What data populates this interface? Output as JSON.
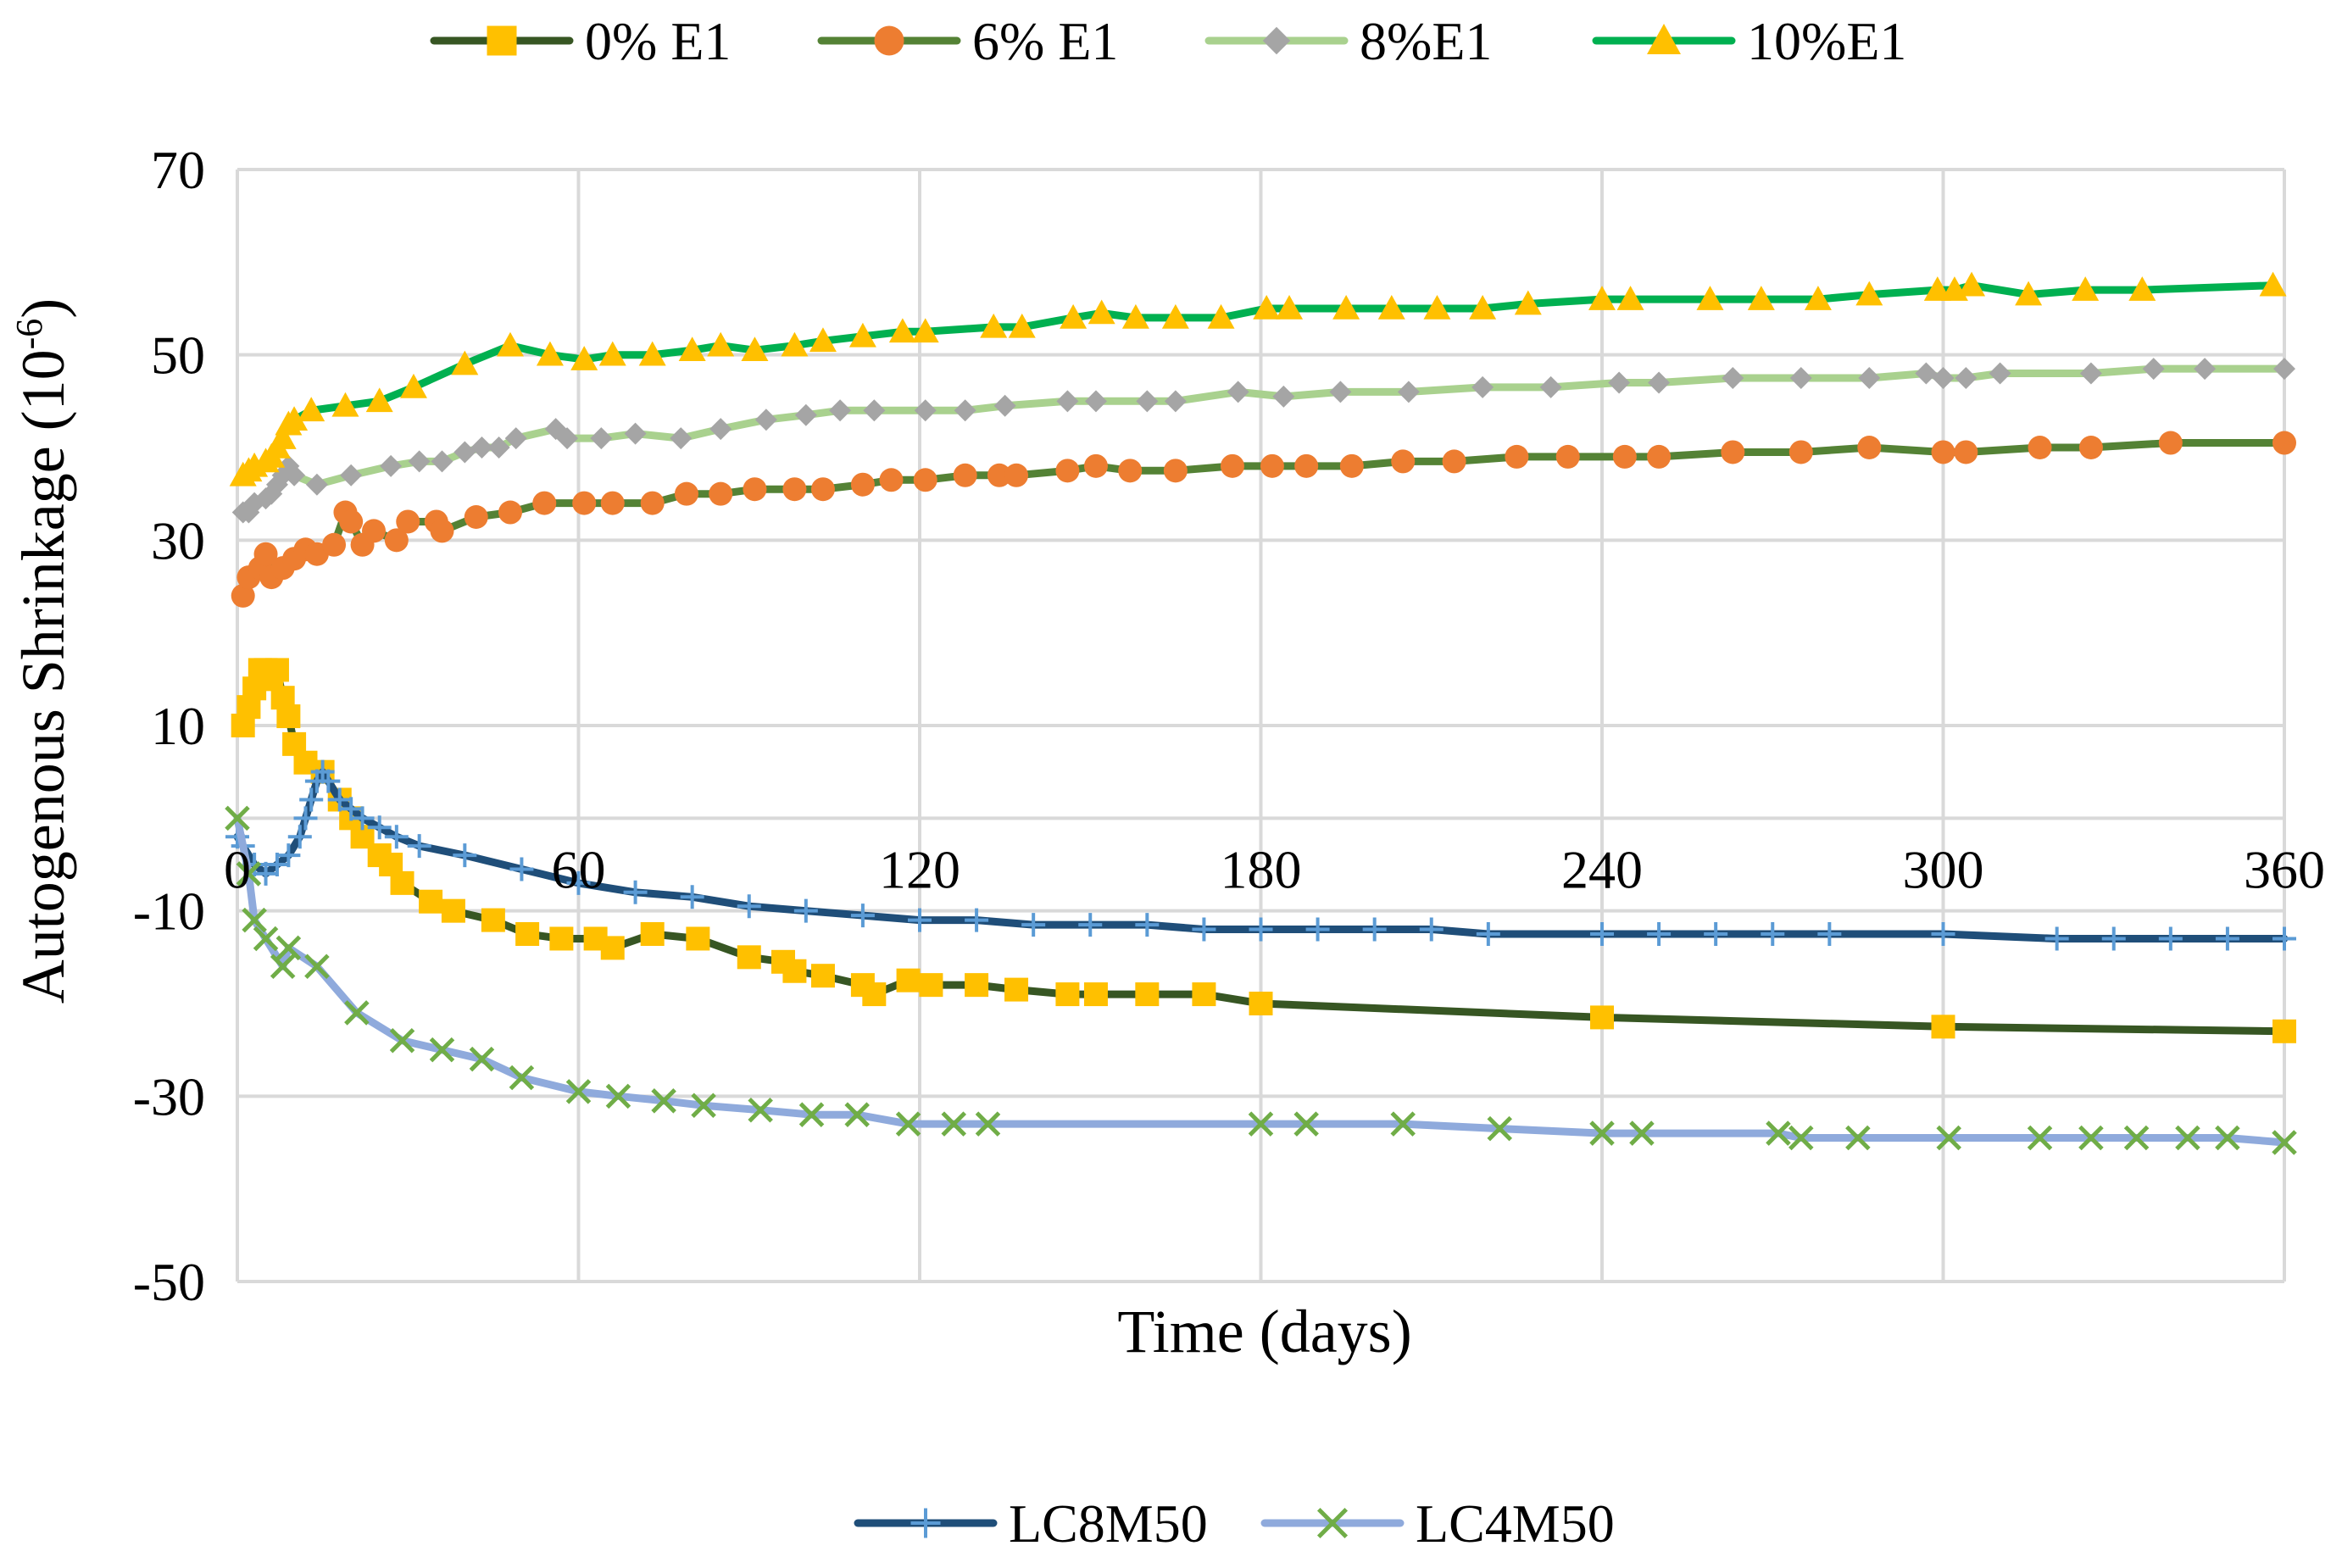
{
  "chart_data": {
    "type": "line",
    "title": "",
    "xlabel": "Time (days)",
    "ylabel_main": "Autogenous Shrinkage (10",
    "ylabel_sup": "-6",
    "ylabel_close": ")",
    "xlim": [
      0,
      360
    ],
    "ylim": [
      -50,
      70
    ],
    "xticks": [
      0,
      60,
      120,
      180,
      240,
      300,
      360
    ],
    "yticks": [
      -50,
      -30,
      -10,
      10,
      30,
      50,
      70
    ],
    "grid": true,
    "legend_top": [
      "0% E1",
      "6% E1",
      "8%E1",
      "10%E1"
    ],
    "legend_bottom": [
      "LC8M50",
      "LC4M50"
    ],
    "series": [
      {
        "name": "0% E1",
        "line_color": "#375623",
        "marker_color": "#FFC000",
        "marker": "square",
        "points": [
          [
            1,
            10
          ],
          [
            2,
            12
          ],
          [
            3,
            14
          ],
          [
            4,
            16
          ],
          [
            5,
            16
          ],
          [
            6,
            15
          ],
          [
            7,
            16
          ],
          [
            8,
            13
          ],
          [
            9,
            11
          ],
          [
            10,
            8
          ],
          [
            12,
            6
          ],
          [
            15,
            5
          ],
          [
            18,
            2
          ],
          [
            20,
            0
          ],
          [
            22,
            -2
          ],
          [
            25,
            -4
          ],
          [
            27,
            -5
          ],
          [
            29,
            -7
          ],
          [
            34,
            -9
          ],
          [
            38,
            -10
          ],
          [
            45,
            -11
          ],
          [
            51,
            -12.5
          ],
          [
            57,
            -13
          ],
          [
            63,
            -13
          ],
          [
            66,
            -14
          ],
          [
            73,
            -12.5
          ],
          [
            81,
            -13
          ],
          [
            90,
            -15
          ],
          [
            96,
            -15.5
          ],
          [
            98,
            -16.5
          ],
          [
            103,
            -17
          ],
          [
            110,
            -18
          ],
          [
            112,
            -19
          ],
          [
            118,
            -17.5
          ],
          [
            122,
            -18
          ],
          [
            130,
            -18
          ],
          [
            137,
            -18.5
          ],
          [
            146,
            -19
          ],
          [
            151,
            -19
          ],
          [
            160,
            -19
          ],
          [
            170,
            -19
          ],
          [
            180,
            -20
          ],
          [
            240,
            -21.5
          ],
          [
            300,
            -22.5
          ],
          [
            360,
            -23
          ]
        ]
      },
      {
        "name": "6% E1",
        "line_color": "#548235",
        "marker_color": "#ED7D31",
        "marker": "circle",
        "points": [
          [
            1,
            24
          ],
          [
            2,
            26
          ],
          [
            4,
            27
          ],
          [
            5,
            28.5
          ],
          [
            6,
            26
          ],
          [
            8,
            27
          ],
          [
            10,
            28
          ],
          [
            12,
            29
          ],
          [
            14,
            28.5
          ],
          [
            17,
            29.5
          ],
          [
            19,
            33
          ],
          [
            20,
            32
          ],
          [
            22,
            29.5
          ],
          [
            24,
            31
          ],
          [
            28,
            30
          ],
          [
            30,
            32
          ],
          [
            35,
            32
          ],
          [
            36,
            31
          ],
          [
            42,
            32.5
          ],
          [
            48,
            33
          ],
          [
            54,
            34
          ],
          [
            61,
            34
          ],
          [
            66,
            34
          ],
          [
            73,
            34
          ],
          [
            79,
            35
          ],
          [
            85,
            35
          ],
          [
            91,
            35.5
          ],
          [
            98,
            35.5
          ],
          [
            103,
            35.5
          ],
          [
            110,
            36
          ],
          [
            115,
            36.5
          ],
          [
            121,
            36.5
          ],
          [
            128,
            37
          ],
          [
            134,
            37
          ],
          [
            137,
            37
          ],
          [
            146,
            37.5
          ],
          [
            151,
            38
          ],
          [
            157,
            37.5
          ],
          [
            165,
            37.5
          ],
          [
            175,
            38
          ],
          [
            182,
            38
          ],
          [
            188,
            38
          ],
          [
            196,
            38
          ],
          [
            205,
            38.5
          ],
          [
            214,
            38.5
          ],
          [
            225,
            39
          ],
          [
            234,
            39
          ],
          [
            244,
            39
          ],
          [
            250,
            39
          ],
          [
            263,
            39.5
          ],
          [
            275,
            39.5
          ],
          [
            287,
            40
          ],
          [
            300,
            39.5
          ],
          [
            304,
            39.5
          ],
          [
            317,
            40
          ],
          [
            326,
            40
          ],
          [
            340,
            40.5
          ],
          [
            360,
            40.5
          ]
        ]
      },
      {
        "name": "8%E1",
        "line_color": "#A9D18E",
        "marker_color": "#A5A5A5",
        "marker": "diamond",
        "points": [
          [
            1,
            33
          ],
          [
            2,
            33
          ],
          [
            3,
            34
          ],
          [
            5,
            34.5
          ],
          [
            6,
            35
          ],
          [
            7,
            36
          ],
          [
            8,
            37
          ],
          [
            9,
            38
          ],
          [
            10,
            37
          ],
          [
            14,
            36
          ],
          [
            20,
            37
          ],
          [
            27,
            38
          ],
          [
            32,
            38.5
          ],
          [
            36,
            38.5
          ],
          [
            40,
            39.5
          ],
          [
            43,
            40
          ],
          [
            46,
            40
          ],
          [
            49,
            41
          ],
          [
            56,
            42
          ],
          [
            58,
            41
          ],
          [
            64,
            41
          ],
          [
            70,
            41.5
          ],
          [
            78,
            41
          ],
          [
            85,
            42
          ],
          [
            93,
            43
          ],
          [
            100,
            43.5
          ],
          [
            106,
            44
          ],
          [
            112,
            44
          ],
          [
            121,
            44
          ],
          [
            128,
            44
          ],
          [
            135,
            44.5
          ],
          [
            146,
            45
          ],
          [
            151,
            45
          ],
          [
            160,
            45
          ],
          [
            165,
            45
          ],
          [
            176,
            46
          ],
          [
            184,
            45.5
          ],
          [
            194,
            46
          ],
          [
            206,
            46
          ],
          [
            219,
            46.5
          ],
          [
            231,
            46.5
          ],
          [
            243,
            47
          ],
          [
            250,
            47
          ],
          [
            263,
            47.5
          ],
          [
            275,
            47.5
          ],
          [
            287,
            47.5
          ],
          [
            297,
            48
          ],
          [
            300,
            47.5
          ],
          [
            304,
            47.5
          ],
          [
            310,
            48
          ],
          [
            326,
            48
          ],
          [
            337,
            48.5
          ],
          [
            346,
            48.5
          ],
          [
            360,
            48.5
          ]
        ]
      },
      {
        "name": "10%E1",
        "line_color": "#00B050",
        "marker_color": "#FFC000",
        "marker": "triangle",
        "points": [
          [
            1,
            37
          ],
          [
            2,
            37.5
          ],
          [
            3,
            38
          ],
          [
            5,
            38.5
          ],
          [
            6,
            39
          ],
          [
            7,
            40
          ],
          [
            8,
            41
          ],
          [
            9,
            42.5
          ],
          [
            10,
            43
          ],
          [
            13,
            44
          ],
          [
            19,
            44.5
          ],
          [
            25,
            45
          ],
          [
            31,
            46.5
          ],
          [
            40,
            49
          ],
          [
            48,
            51
          ],
          [
            55,
            50
          ],
          [
            61,
            49.5
          ],
          [
            66,
            50
          ],
          [
            73,
            50
          ],
          [
            80,
            50.5
          ],
          [
            85,
            51
          ],
          [
            91,
            50.5
          ],
          [
            98,
            51
          ],
          [
            103,
            51.5
          ],
          [
            110,
            52
          ],
          [
            117,
            52.5
          ],
          [
            121,
            52.5
          ],
          [
            133,
            53
          ],
          [
            138,
            53
          ],
          [
            147,
            54
          ],
          [
            152,
            54.5
          ],
          [
            158,
            54
          ],
          [
            165,
            54
          ],
          [
            173,
            54
          ],
          [
            181,
            55
          ],
          [
            185,
            55
          ],
          [
            195,
            55
          ],
          [
            203,
            55
          ],
          [
            211,
            55
          ],
          [
            219,
            55
          ],
          [
            227,
            55.5
          ],
          [
            240,
            56
          ],
          [
            245,
            56
          ],
          [
            259,
            56
          ],
          [
            268,
            56
          ],
          [
            278,
            56
          ],
          [
            287,
            56.5
          ],
          [
            299,
            57
          ],
          [
            302,
            57
          ],
          [
            305,
            57.5
          ],
          [
            315,
            56.5
          ],
          [
            325,
            57
          ],
          [
            335,
            57
          ],
          [
            358,
            57.5
          ]
        ]
      },
      {
        "name": "LC8M50",
        "line_color": "#1F4E79",
        "marker_color": "#5B9BD5",
        "marker": "plus",
        "points": [
          [
            0,
            -2
          ],
          [
            1,
            -3
          ],
          [
            3,
            -5
          ],
          [
            5,
            -6
          ],
          [
            7,
            -5
          ],
          [
            9,
            -4
          ],
          [
            11,
            -2
          ],
          [
            12,
            0
          ],
          [
            13,
            2
          ],
          [
            14,
            4
          ],
          [
            15,
            5
          ],
          [
            16,
            4
          ],
          [
            18,
            2
          ],
          [
            20,
            1
          ],
          [
            22,
            0
          ],
          [
            25,
            -1
          ],
          [
            28,
            -2
          ],
          [
            32,
            -3
          ],
          [
            40,
            -4
          ],
          [
            50,
            -5.5
          ],
          [
            60,
            -7
          ],
          [
            70,
            -8
          ],
          [
            80,
            -8.5
          ],
          [
            90,
            -9.5
          ],
          [
            100,
            -10
          ],
          [
            110,
            -10.5
          ],
          [
            120,
            -11
          ],
          [
            130,
            -11
          ],
          [
            140,
            -11.5
          ],
          [
            150,
            -11.5
          ],
          [
            160,
            -11.5
          ],
          [
            170,
            -12
          ],
          [
            180,
            -12
          ],
          [
            190,
            -12
          ],
          [
            200,
            -12
          ],
          [
            210,
            -12
          ],
          [
            220,
            -12.5
          ],
          [
            240,
            -12.5
          ],
          [
            250,
            -12.5
          ],
          [
            260,
            -12.5
          ],
          [
            270,
            -12.5
          ],
          [
            280,
            -12.5
          ],
          [
            300,
            -12.5
          ],
          [
            320,
            -13
          ],
          [
            330,
            -13
          ],
          [
            340,
            -13
          ],
          [
            350,
            -13
          ],
          [
            360,
            -13
          ]
        ]
      },
      {
        "name": "LC4M50",
        "line_color": "#8FAADC",
        "marker_color": "#70AD47",
        "marker": "x",
        "points": [
          [
            0,
            0
          ],
          [
            2,
            -6
          ],
          [
            3,
            -11
          ],
          [
            5,
            -13
          ],
          [
            8,
            -16
          ],
          [
            9,
            -14
          ],
          [
            14,
            -16
          ],
          [
            21,
            -21
          ],
          [
            29,
            -24
          ],
          [
            36,
            -25
          ],
          [
            43,
            -26
          ],
          [
            50,
            -28
          ],
          [
            60,
            -29.5
          ],
          [
            67,
            -30
          ],
          [
            75,
            -30.5
          ],
          [
            82,
            -31
          ],
          [
            92,
            -31.5
          ],
          [
            101,
            -32
          ],
          [
            109,
            -32
          ],
          [
            118,
            -33
          ],
          [
            126,
            -33
          ],
          [
            132,
            -33
          ],
          [
            180,
            -33
          ],
          [
            188,
            -33
          ],
          [
            205,
            -33
          ],
          [
            222,
            -33.5
          ],
          [
            240,
            -34
          ],
          [
            247,
            -34
          ],
          [
            271,
            -34
          ],
          [
            275,
            -34.5
          ],
          [
            285,
            -34.5
          ],
          [
            301,
            -34.5
          ],
          [
            317,
            -34.5
          ],
          [
            326,
            -34.5
          ],
          [
            334,
            -34.5
          ],
          [
            343,
            -34.5
          ],
          [
            350,
            -34.5
          ],
          [
            360,
            -35
          ]
        ]
      }
    ]
  }
}
